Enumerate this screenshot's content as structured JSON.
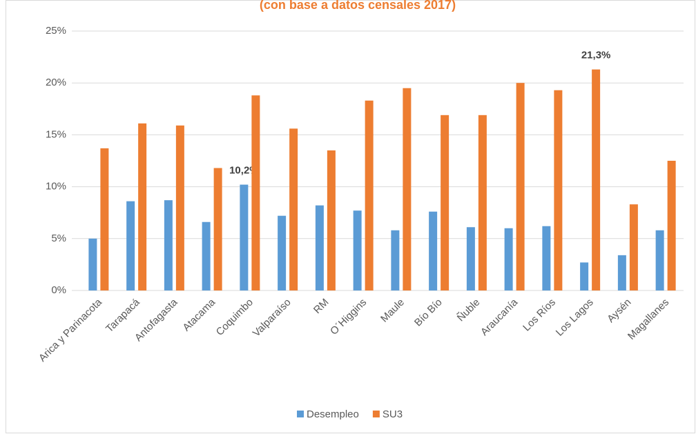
{
  "chart_data": {
    "type": "bar",
    "title": "(con base a datos censales 2017)",
    "categories": [
      "Arica y Parinacota",
      "Tarapacá",
      "Antofagasta",
      "Atacama",
      "Coquimbo",
      "Valparaíso",
      "RM",
      "O´Higgins",
      "Maule",
      "Bío Bío",
      "Ñuble",
      "Araucanía",
      "Los Ríos",
      "Los Lagos",
      "Aysén",
      "Magallanes"
    ],
    "series": [
      {
        "name": "Desempleo",
        "color": "#5b9bd5",
        "values": [
          5.0,
          8.6,
          8.7,
          6.6,
          10.2,
          7.2,
          8.2,
          7.7,
          5.8,
          7.6,
          6.1,
          6.0,
          6.2,
          2.7,
          3.4,
          5.8
        ],
        "value_labels": [
          null,
          null,
          null,
          null,
          "10,2%",
          null,
          null,
          null,
          null,
          null,
          null,
          null,
          null,
          null,
          null,
          null
        ]
      },
      {
        "name": "SU3",
        "color": "#ed7d31",
        "values": [
          13.7,
          16.1,
          15.9,
          11.8,
          18.8,
          15.6,
          13.5,
          18.3,
          19.5,
          16.9,
          16.9,
          20.0,
          19.3,
          21.3,
          8.3,
          12.5
        ],
        "value_labels": [
          null,
          null,
          null,
          null,
          null,
          null,
          null,
          null,
          null,
          null,
          null,
          null,
          null,
          "21,3%",
          null,
          null
        ]
      }
    ],
    "ylim": [
      0,
      25
    ],
    "yticks": [
      {
        "value": 0,
        "label": "0%"
      },
      {
        "value": 5,
        "label": "5%"
      },
      {
        "value": 10,
        "label": "10%"
      },
      {
        "value": 15,
        "label": "15%"
      },
      {
        "value": 20,
        "label": "20%"
      },
      {
        "value": 25,
        "label": "25%"
      }
    ],
    "grid": true
  }
}
